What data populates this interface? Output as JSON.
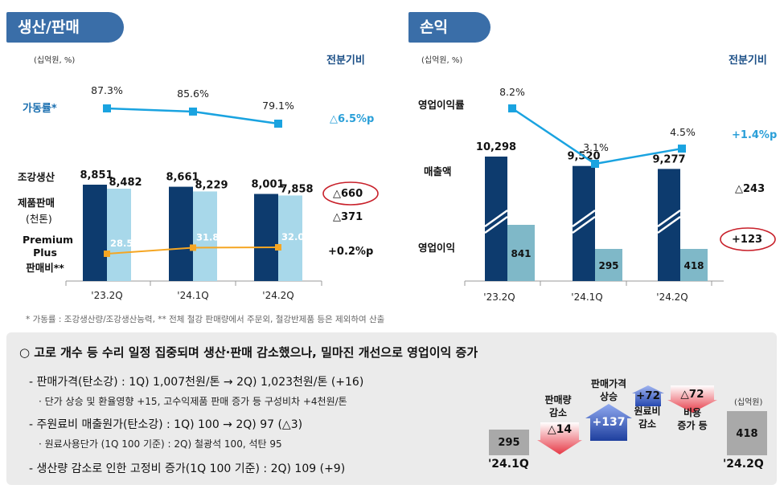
{
  "left": {
    "tab": "생산/판매",
    "unit": "(십억원, %)",
    "header": "전분기비",
    "utilization_label": "가동률*",
    "prod_label": "조강생산",
    "sales_label": "제품판매",
    "sales_sub": "(천톤)",
    "premium_label_1": "Premium",
    "premium_label_2": "Plus",
    "premium_label_3": "판매비**",
    "change_util": "△6.5%p",
    "change_prod": "△660",
    "change_sales": "△371",
    "change_premium": "+0.2%p"
  },
  "right": {
    "tab": "손익",
    "unit": "(십억원, %)",
    "header": "전분기비",
    "margin_label": "영업이익률",
    "revenue_label": "매출액",
    "op_label": "영업이익",
    "change_margin": "+1.4%p",
    "change_revenue": "△243",
    "change_op": "+123"
  },
  "footnote": "* 가동률 : 조강생산량/조강생산능력, ** 전체 철강 판매량에서 주문외, 철강반제품 등은 제외하여 산출",
  "summary": {
    "headline": "○ 고로 개수 등 수리 일정 집중되며 생산·판매 감소했으나, 밀마진 개선으로 영업이익 증가",
    "line1": "- 판매가격(탄소강) : 1Q) 1,007천원/톤 → 2Q) 1,023천원/톤 (+16)",
    "line1_sub": "· 단가 상승 및 환율영향 +15, 고수익제품 판매 증가 등 구성비차 +4천원/톤",
    "line2": "- 주원료비 매출원가(탄소강) : 1Q) 100 → 2Q) 97 (△3)",
    "line2_sub": "· 원료사용단가 (1Q 100 기준) : 2Q) 철광석 100, 석탄 95",
    "line3": "- 생산량 감소로 인한 고정비 증가(1Q 100 기준) : 2Q) 109 (+9)"
  },
  "waterfall": {
    "unit": "(십억원)",
    "start_value": "295",
    "start_label": "'24.1Q",
    "end_value": "418",
    "end_label": "'24.2Q",
    "sales_vol_label_1": "판매량",
    "sales_vol_label_2": "감소",
    "sales_vol_value": "△14",
    "price_label_1": "판매가격",
    "price_label_2": "상승",
    "price_value": "+137",
    "raw_value": "+72",
    "raw_label_1": "원료비",
    "raw_label_2": "감소",
    "cost_value": "△72",
    "cost_label_1": "비용",
    "cost_label_2": "증가 등"
  },
  "chart_data": [
    {
      "type": "bar",
      "categories": [
        "'23.2Q",
        "'24.1Q",
        "'24.2Q"
      ],
      "series": [
        {
          "name": "조강생산",
          "values": [
            8851,
            8661,
            8001
          ]
        },
        {
          "name": "제품판매",
          "values": [
            8482,
            8229,
            7858
          ]
        },
        {
          "name": "가동률*",
          "values": [
            87.3,
            85.6,
            79.1
          ],
          "kind": "line"
        },
        {
          "name": "Premium Plus 판매비**",
          "values": [
            28.5,
            31.8,
            32.0
          ],
          "kind": "line"
        }
      ],
      "value_labels": {
        "prod": [
          "8,851",
          "8,661",
          "8,001"
        ],
        "sales": [
          "8,482",
          "8,229",
          "7,858"
        ],
        "util": [
          "87.3%",
          "85.6%",
          "79.1%"
        ],
        "premium": [
          "28.5%",
          "31.8%",
          "32.0%"
        ]
      },
      "colors": {
        "prod": "#0d3b6e",
        "sales": "#a8d8ea",
        "util": "#1aa3e0",
        "premium": "#f5a623"
      }
    },
    {
      "type": "bar",
      "categories": [
        "'23.2Q",
        "'24.1Q",
        "'24.2Q"
      ],
      "series": [
        {
          "name": "매출액",
          "values": [
            10298,
            9520,
            9277
          ]
        },
        {
          "name": "영업이익",
          "values": [
            841,
            295,
            418
          ]
        },
        {
          "name": "영업이익률",
          "values": [
            8.2,
            3.1,
            4.5
          ],
          "kind": "line"
        }
      ],
      "value_labels": {
        "revenue": [
          "10,298",
          "9,520",
          "9,277"
        ],
        "op": [
          "841",
          "295",
          "418"
        ],
        "margin": [
          "8.2%",
          "3.1%",
          "4.5%"
        ]
      },
      "colors": {
        "revenue": "#0d3b6e",
        "op": "#7fb8c8",
        "margin": "#1aa3e0"
      }
    }
  ]
}
